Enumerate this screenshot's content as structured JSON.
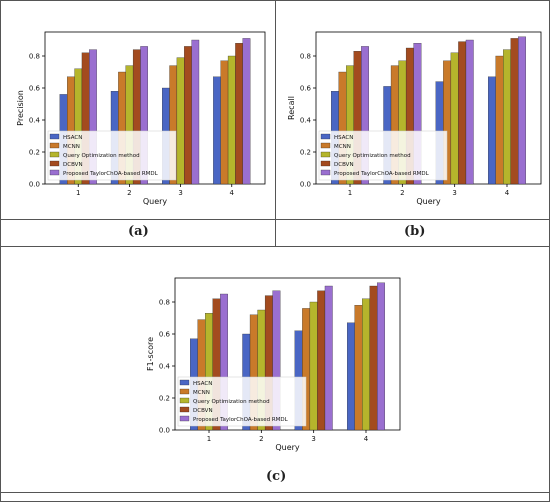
{
  "colors": {
    "HSACN": "#4a66c4",
    "MCNN": "#c97a2a",
    "Query Optimization method": "#b5b52c",
    "DCBVN": "#3f6e3f",
    "Proposed TaylorChOA-based RMDL": "#a34b1f",
    "extra": "#9a6fd0"
  },
  "chart_data": [
    {
      "type": "bar",
      "caption": "(a)",
      "xlabel": "Query",
      "ylabel": "Precision",
      "categories": [
        "1",
        "2",
        "3",
        "4"
      ],
      "ylim": [
        0,
        0.95
      ],
      "yticks": [
        0.0,
        0.2,
        0.4,
        0.6,
        0.8
      ],
      "legend_position": "lower-left",
      "grid": false,
      "series": [
        {
          "name": "HSACN",
          "values": [
            0.56,
            0.58,
            0.6,
            0.67
          ]
        },
        {
          "name": "MCNN",
          "values": [
            0.67,
            0.7,
            0.74,
            0.77
          ]
        },
        {
          "name": "Query Optimization method",
          "values": [
            0.72,
            0.74,
            0.79,
            0.8
          ]
        },
        {
          "name": "DCBVN",
          "values": [
            0.82,
            0.84,
            0.86,
            0.88
          ]
        },
        {
          "name": "Proposed TaylorChOA-based RMDL",
          "values": [
            0.84,
            0.86,
            0.9,
            0.91
          ]
        }
      ]
    },
    {
      "type": "bar",
      "caption": "(b)",
      "xlabel": "Query",
      "ylabel": "Recall",
      "categories": [
        "1",
        "2",
        "3",
        "4"
      ],
      "ylim": [
        0,
        0.95
      ],
      "yticks": [
        0.0,
        0.2,
        0.4,
        0.6,
        0.8
      ],
      "legend_position": "lower-left",
      "grid": false,
      "series": [
        {
          "name": "HSACN",
          "values": [
            0.58,
            0.61,
            0.64,
            0.67
          ]
        },
        {
          "name": "MCNN",
          "values": [
            0.7,
            0.74,
            0.77,
            0.8
          ]
        },
        {
          "name": "Query Optimization method",
          "values": [
            0.74,
            0.77,
            0.82,
            0.84
          ]
        },
        {
          "name": "DCBVN",
          "values": [
            0.83,
            0.85,
            0.89,
            0.91
          ]
        },
        {
          "name": "Proposed TaylorChOA-based RMDL",
          "values": [
            0.86,
            0.88,
            0.9,
            0.92
          ]
        }
      ]
    },
    {
      "type": "bar",
      "caption": "(c)",
      "xlabel": "Query",
      "ylabel": "F1-score",
      "categories": [
        "1",
        "2",
        "3",
        "4"
      ],
      "ylim": [
        0,
        0.95
      ],
      "yticks": [
        0.0,
        0.2,
        0.4,
        0.6,
        0.8
      ],
      "legend_position": "lower-left",
      "grid": false,
      "series": [
        {
          "name": "HSACN",
          "values": [
            0.57,
            0.6,
            0.62,
            0.67
          ]
        },
        {
          "name": "MCNN",
          "values": [
            0.69,
            0.72,
            0.76,
            0.78
          ]
        },
        {
          "name": "Query Optimization method",
          "values": [
            0.73,
            0.75,
            0.8,
            0.82
          ]
        },
        {
          "name": "DCBVN",
          "values": [
            0.82,
            0.84,
            0.87,
            0.9
          ]
        },
        {
          "name": "Proposed TaylorChOA-based RMDL",
          "values": [
            0.85,
            0.87,
            0.9,
            0.92
          ]
        }
      ]
    }
  ]
}
